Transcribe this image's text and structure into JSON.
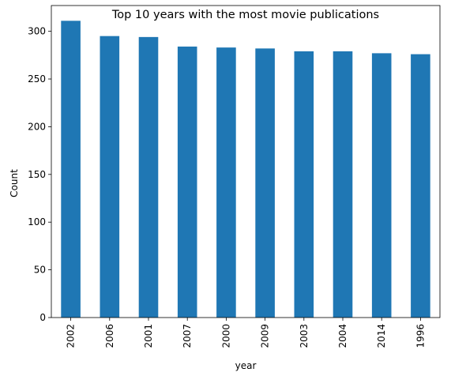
{
  "chart_data": {
    "type": "bar",
    "title": "Top 10 years with the most movie publications",
    "xlabel": "year",
    "ylabel": "Count",
    "categories": [
      "2002",
      "2006",
      "2001",
      "2007",
      "2000",
      "2009",
      "2003",
      "2004",
      "2014",
      "1996"
    ],
    "values": [
      311,
      295,
      294,
      284,
      283,
      282,
      279,
      279,
      277,
      276
    ],
    "ylim": [
      0,
      327
    ],
    "yticks": [
      0,
      50,
      100,
      150,
      200,
      250,
      300
    ],
    "grid": false,
    "legend": false,
    "bar_color": "#1f77b4"
  }
}
